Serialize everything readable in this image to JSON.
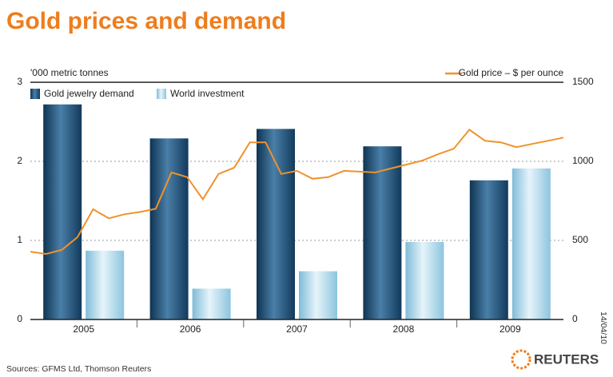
{
  "chart_data": [
    {
      "type": "bar",
      "title": "Gold prices and demand",
      "y_label": "'000 metric tonnes",
      "categories": [
        "2005",
        "2006",
        "2007",
        "2008",
        "2009"
      ],
      "series": [
        {
          "name": "Gold jewelry demand",
          "color": "#1d4d73",
          "values": [
            2.72,
            2.29,
            2.41,
            2.19,
            1.76
          ]
        },
        {
          "name": "World investment",
          "color": "#a9d6ea",
          "values": [
            0.87,
            0.39,
            0.61,
            0.98,
            1.91
          ]
        }
      ],
      "ylim": [
        0,
        3
      ],
      "yticks": [
        0,
        1,
        2,
        3
      ],
      "grid": true
    },
    {
      "type": "line",
      "series": [
        {
          "name": "Gold price – $ per ounce",
          "color": "#f0922b",
          "axis": "y2",
          "values": [
            429,
            414,
            440,
            520,
            697,
            640,
            665,
            680,
            700,
            930,
            900,
            760,
            920,
            960,
            1120,
            1120,
            920,
            940,
            890,
            900,
            940,
            935,
            930,
            955,
            980,
            1005,
            1045,
            1080,
            1200,
            1130,
            1120,
            1090,
            1110,
            1130,
            1150
          ]
        }
      ],
      "y2lim": [
        0,
        1500
      ],
      "y2ticks": [
        0,
        500,
        1000,
        1500
      ]
    }
  ],
  "footer": {
    "source": "Sources: GFMS Ltd, Thomson Reuters",
    "date": "14/04/10",
    "logo": "REUTERS"
  }
}
